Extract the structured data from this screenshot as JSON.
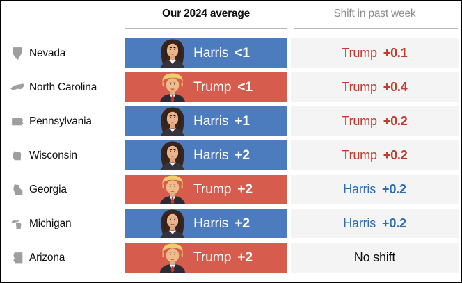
{
  "header": {
    "average_label": "Our 2024 average",
    "shift_label": "Shift in past week"
  },
  "colors": {
    "harris_bar": "#4d7cbe",
    "trump_bar": "#d65c4d",
    "harris_shift_text": "#2e6db4",
    "trump_shift_text": "#c23b2e",
    "shift_cell_bg": "#f4f4f4",
    "state_icon_gray": "#9e9e9e",
    "header_muted": "#8d8d8d"
  },
  "chart_data": {
    "type": "table",
    "columns": [
      "State",
      "Our 2024 average",
      "Shift in past week"
    ],
    "rows": [
      {
        "state": "Nevada",
        "icon": "nevada-shape-icon",
        "portrait_icon": "harris-portrait-icon",
        "leader": "Harris",
        "margin": "<1",
        "shift_party": "Trump",
        "shift_value": "+0.1"
      },
      {
        "state": "North Carolina",
        "icon": "north-carolina-shape-icon",
        "portrait_icon": "trump-portrait-icon",
        "leader": "Trump",
        "margin": "<1",
        "shift_party": "Trump",
        "shift_value": "+0.4"
      },
      {
        "state": "Pennsylvania",
        "icon": "pennsylvania-shape-icon",
        "portrait_icon": "harris-portrait-icon",
        "leader": "Harris",
        "margin": "+1",
        "shift_party": "Trump",
        "shift_value": "+0.2"
      },
      {
        "state": "Wisconsin",
        "icon": "wisconsin-shape-icon",
        "portrait_icon": "harris-portrait-icon",
        "leader": "Harris",
        "margin": "+2",
        "shift_party": "Trump",
        "shift_value": "+0.2"
      },
      {
        "state": "Georgia",
        "icon": "georgia-shape-icon",
        "portrait_icon": "trump-portrait-icon",
        "leader": "Trump",
        "margin": "+2",
        "shift_party": "Harris",
        "shift_value": "+0.2"
      },
      {
        "state": "Michigan",
        "icon": "michigan-shape-icon",
        "portrait_icon": "harris-portrait-icon",
        "leader": "Harris",
        "margin": "+2",
        "shift_party": "Harris",
        "shift_value": "+0.2"
      },
      {
        "state": "Arizona",
        "icon": "arizona-shape-icon",
        "portrait_icon": "trump-portrait-icon",
        "leader": "Trump",
        "margin": "+2",
        "shift_party": null,
        "shift_text": "No shift"
      }
    ]
  }
}
